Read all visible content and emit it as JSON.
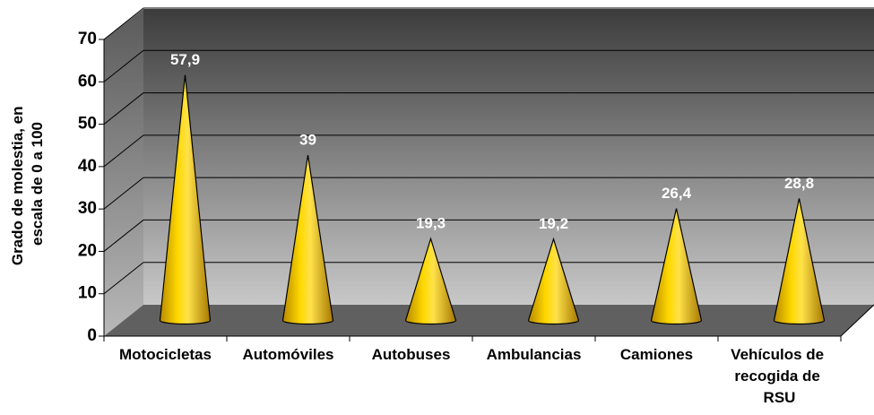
{
  "chart_data": {
    "type": "cone",
    "ylabel": "Grado de molestia, en escala de 0 a 100",
    "categories": [
      "Motocicletas",
      "Automóviles",
      "Autobuses",
      "Ambulancias",
      "Camiones",
      "Vehículos de recogida de RSU"
    ],
    "values": [
      57.9,
      39,
      19.3,
      19.2,
      26.4,
      28.8
    ],
    "value_labels": [
      "57,9",
      "39",
      "19,3",
      "19,2",
      "26,4",
      "28,8"
    ],
    "color": "#ffd200",
    "ylim": [
      0,
      70
    ],
    "yticks": [
      0,
      10,
      20,
      30,
      40,
      50,
      60,
      70
    ],
    "grid": true
  }
}
